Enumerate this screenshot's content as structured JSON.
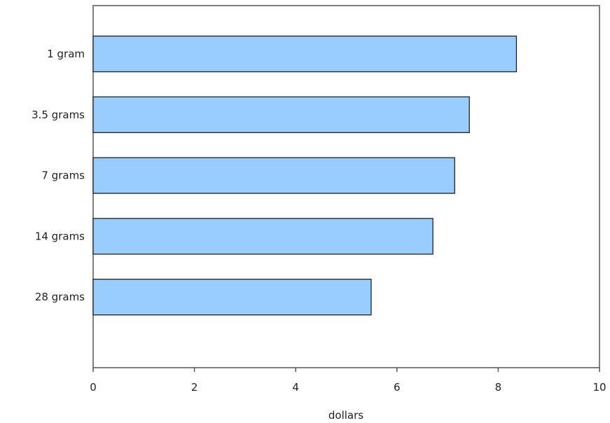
{
  "chart_data": {
    "type": "bar",
    "orientation": "horizontal",
    "title": "",
    "xlabel": "dollars",
    "ylabel": "",
    "categories": [
      "1 gram",
      "3.5 grams",
      "7 grams",
      "14 grams",
      "28 grams"
    ],
    "values": [
      8.36,
      7.43,
      7.14,
      6.71,
      5.49
    ],
    "xlim": [
      0,
      10
    ],
    "x_ticks": [
      "0",
      "2",
      "4",
      "6",
      "8",
      "10"
    ],
    "grid": false,
    "legend": "none",
    "colors": {
      "bar_fill": "#99ccff",
      "bar_stroke": "#222222",
      "axis": "#555555"
    }
  }
}
